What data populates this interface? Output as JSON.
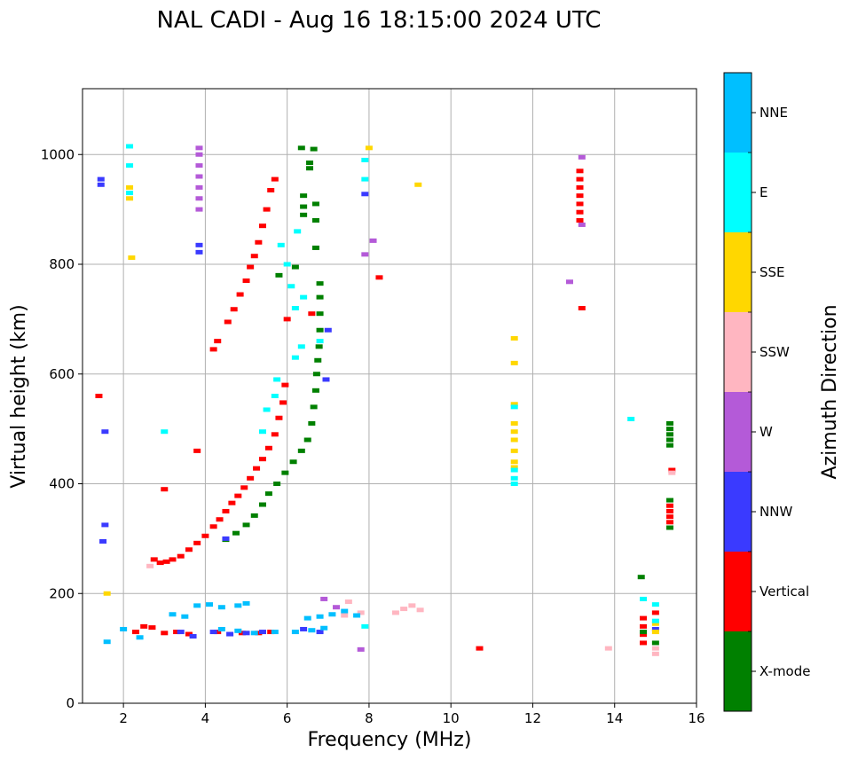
{
  "chart_data": {
    "type": "scatter",
    "title": "NAL CADI - Aug 16 18:15:00 2024 UTC",
    "xlabel": "Frequency (MHz)",
    "ylabel": "Virtual height (km)",
    "xlim": [
      1,
      16
    ],
    "ylim": [
      0,
      1120
    ],
    "xticks": [
      2,
      4,
      6,
      8,
      10,
      12,
      14,
      16
    ],
    "yticks": [
      0,
      200,
      400,
      600,
      800,
      1000
    ],
    "grid": true,
    "colorbar": {
      "label": "Azimuth Direction",
      "categories": [
        {
          "name": "X-mode",
          "color": "#008000"
        },
        {
          "name": "Vertical",
          "color": "#ff0000"
        },
        {
          "name": "NNW",
          "color": "#3a3aff"
        },
        {
          "name": "W",
          "color": "#b45ad8"
        },
        {
          "name": "SSW",
          "color": "#ffb6c1"
        },
        {
          "name": "SSE",
          "color": "#ffd700"
        },
        {
          "name": "E",
          "color": "#00ffff"
        },
        {
          "name": "NNE",
          "color": "#00bfff"
        }
      ]
    },
    "series": [
      {
        "name": "Vertical",
        "points": [
          [
            2.75,
            262
          ],
          [
            2.9,
            256
          ],
          [
            3.05,
            258
          ],
          [
            3.2,
            262
          ],
          [
            3.4,
            268
          ],
          [
            3.6,
            280
          ],
          [
            3.8,
            292
          ],
          [
            4.0,
            305
          ],
          [
            4.2,
            322
          ],
          [
            4.35,
            335
          ],
          [
            4.5,
            350
          ],
          [
            4.65,
            365
          ],
          [
            4.8,
            378
          ],
          [
            4.95,
            393
          ],
          [
            5.1,
            410
          ],
          [
            5.25,
            428
          ],
          [
            5.4,
            445
          ],
          [
            5.55,
            465
          ],
          [
            5.7,
            490
          ],
          [
            5.8,
            520
          ],
          [
            5.9,
            548
          ],
          [
            5.95,
            580
          ],
          [
            4.3,
            660
          ],
          [
            4.55,
            695
          ],
          [
            4.7,
            718
          ],
          [
            4.85,
            745
          ],
          [
            5.0,
            770
          ],
          [
            5.1,
            795
          ],
          [
            5.2,
            815
          ],
          [
            5.3,
            840
          ],
          [
            5.4,
            870
          ],
          [
            5.5,
            900
          ],
          [
            5.6,
            935
          ],
          [
            5.7,
            955
          ],
          [
            2.3,
            130
          ],
          [
            2.5,
            140
          ],
          [
            2.7,
            138
          ],
          [
            3.0,
            128
          ],
          [
            3.3,
            130
          ],
          [
            3.6,
            126
          ],
          [
            4.3,
            130
          ],
          [
            4.9,
            128
          ],
          [
            5.3,
            128
          ],
          [
            5.6,
            130
          ],
          [
            1.4,
            560
          ],
          [
            3.0,
            390
          ],
          [
            3.8,
            460
          ],
          [
            4.2,
            645
          ],
          [
            6.0,
            700
          ],
          [
            6.6,
            710
          ],
          [
            8.25,
            776
          ],
          [
            13.2,
            720
          ],
          [
            13.15,
            880
          ],
          [
            13.15,
            895
          ],
          [
            13.15,
            910
          ],
          [
            13.15,
            925
          ],
          [
            13.15,
            940
          ],
          [
            13.15,
            955
          ],
          [
            13.15,
            970
          ],
          [
            15.0,
            165
          ],
          [
            14.7,
            155
          ],
          [
            14.7,
            140
          ],
          [
            14.7,
            125
          ],
          [
            14.7,
            110
          ],
          [
            15.4,
            425
          ],
          [
            15.35,
            340
          ],
          [
            15.35,
            350
          ],
          [
            15.35,
            360
          ],
          [
            15.35,
            330
          ],
          [
            10.7,
            100
          ]
        ]
      },
      {
        "name": "X-mode",
        "points": [
          [
            4.5,
            298
          ],
          [
            4.75,
            310
          ],
          [
            5.0,
            325
          ],
          [
            5.2,
            342
          ],
          [
            5.4,
            362
          ],
          [
            5.55,
            382
          ],
          [
            5.75,
            400
          ],
          [
            5.95,
            420
          ],
          [
            6.15,
            440
          ],
          [
            6.35,
            460
          ],
          [
            6.5,
            480
          ],
          [
            6.6,
            510
          ],
          [
            6.65,
            540
          ],
          [
            6.7,
            570
          ],
          [
            6.72,
            600
          ],
          [
            6.75,
            625
          ],
          [
            6.78,
            650
          ],
          [
            6.8,
            680
          ],
          [
            6.8,
            710
          ],
          [
            6.8,
            740
          ],
          [
            6.8,
            765
          ],
          [
            6.4,
            890
          ],
          [
            6.4,
            905
          ],
          [
            6.4,
            925
          ],
          [
            6.55,
            975
          ],
          [
            6.55,
            985
          ],
          [
            6.65,
            1010
          ],
          [
            6.35,
            1012
          ],
          [
            6.7,
            910
          ],
          [
            6.7,
            880
          ],
          [
            6.7,
            830
          ],
          [
            6.2,
            795
          ],
          [
            5.8,
            780
          ],
          [
            14.65,
            230
          ],
          [
            15.35,
            470
          ],
          [
            15.35,
            480
          ],
          [
            15.35,
            490
          ],
          [
            15.35,
            500
          ],
          [
            15.35,
            510
          ],
          [
            15.35,
            320
          ],
          [
            15.35,
            370
          ],
          [
            15.0,
            110
          ],
          [
            14.7,
            130
          ]
        ]
      },
      {
        "name": "NNW",
        "points": [
          [
            1.45,
            955
          ],
          [
            1.45,
            945
          ],
          [
            1.55,
            495
          ],
          [
            1.55,
            325
          ],
          [
            1.5,
            295
          ],
          [
            3.4,
            130
          ],
          [
            3.7,
            122
          ],
          [
            4.2,
            130
          ],
          [
            4.6,
            126
          ],
          [
            5.0,
            128
          ],
          [
            5.4,
            130
          ],
          [
            6.4,
            135
          ],
          [
            6.8,
            130
          ],
          [
            7.0,
            680
          ],
          [
            6.95,
            590
          ],
          [
            7.9,
            928
          ],
          [
            3.85,
            835
          ],
          [
            3.85,
            822
          ],
          [
            4.5,
            300
          ],
          [
            15.0,
            135
          ]
        ]
      },
      {
        "name": "W",
        "points": [
          [
            3.85,
            900
          ],
          [
            3.85,
            920
          ],
          [
            3.85,
            940
          ],
          [
            3.85,
            960
          ],
          [
            3.85,
            980
          ],
          [
            3.85,
            1000
          ],
          [
            3.85,
            1012
          ],
          [
            8.1,
            843
          ],
          [
            7.9,
            818
          ],
          [
            12.9,
            768
          ],
          [
            13.2,
            995
          ],
          [
            13.2,
            872
          ],
          [
            6.9,
            190
          ],
          [
            7.2,
            175
          ],
          [
            7.8,
            98
          ]
        ]
      },
      {
        "name": "SSW",
        "points": [
          [
            8.65,
            165
          ],
          [
            8.85,
            172
          ],
          [
            9.05,
            178
          ],
          [
            9.25,
            170
          ],
          [
            7.5,
            185
          ],
          [
            7.8,
            165
          ],
          [
            7.4,
            160
          ],
          [
            2.65,
            250
          ],
          [
            13.85,
            100
          ],
          [
            15.0,
            90
          ],
          [
            15.0,
            100
          ],
          [
            15.4,
            420
          ]
        ]
      },
      {
        "name": "SSE",
        "points": [
          [
            11.55,
            665
          ],
          [
            11.55,
            620
          ],
          [
            11.55,
            545
          ],
          [
            11.55,
            510
          ],
          [
            11.55,
            495
          ],
          [
            11.55,
            480
          ],
          [
            11.55,
            460
          ],
          [
            11.55,
            440
          ],
          [
            11.55,
            430
          ],
          [
            9.2,
            945
          ],
          [
            8.0,
            1012
          ],
          [
            2.15,
            920
          ],
          [
            2.15,
            940
          ],
          [
            2.2,
            812
          ],
          [
            1.6,
            200
          ],
          [
            15.0,
            130
          ],
          [
            15.0,
            145
          ]
        ]
      },
      {
        "name": "E",
        "points": [
          [
            11.55,
            425
          ],
          [
            11.55,
            410
          ],
          [
            11.55,
            400
          ],
          [
            11.55,
            540
          ],
          [
            14.4,
            518
          ],
          [
            2.15,
            1015
          ],
          [
            2.15,
            980
          ],
          [
            2.15,
            930
          ],
          [
            3.0,
            495
          ],
          [
            7.9,
            990
          ],
          [
            7.9,
            955
          ],
          [
            5.85,
            835
          ],
          [
            6.1,
            760
          ],
          [
            6.4,
            740
          ],
          [
            6.2,
            720
          ],
          [
            6.35,
            650
          ],
          [
            6.2,
            630
          ],
          [
            5.75,
            590
          ],
          [
            5.7,
            560
          ],
          [
            5.5,
            535
          ],
          [
            5.4,
            495
          ],
          [
            6.25,
            860
          ],
          [
            6.0,
            800
          ],
          [
            6.8,
            660
          ],
          [
            15.0,
            180
          ],
          [
            14.7,
            190
          ],
          [
            15.0,
            150
          ],
          [
            7.9,
            140
          ]
        ]
      },
      {
        "name": "NNE",
        "points": [
          [
            3.8,
            178
          ],
          [
            4.1,
            180
          ],
          [
            4.4,
            175
          ],
          [
            4.8,
            178
          ],
          [
            5.0,
            182
          ],
          [
            3.2,
            162
          ],
          [
            3.5,
            158
          ],
          [
            6.5,
            155
          ],
          [
            6.8,
            158
          ],
          [
            7.1,
            162
          ],
          [
            7.4,
            168
          ],
          [
            7.7,
            160
          ],
          [
            2.4,
            120
          ],
          [
            2.0,
            135
          ],
          [
            4.4,
            135
          ],
          [
            4.8,
            132
          ],
          [
            5.2,
            128
          ],
          [
            5.7,
            130
          ],
          [
            6.2,
            130
          ],
          [
            6.6,
            133
          ],
          [
            6.9,
            137
          ],
          [
            1.6,
            112
          ]
        ]
      }
    ]
  }
}
